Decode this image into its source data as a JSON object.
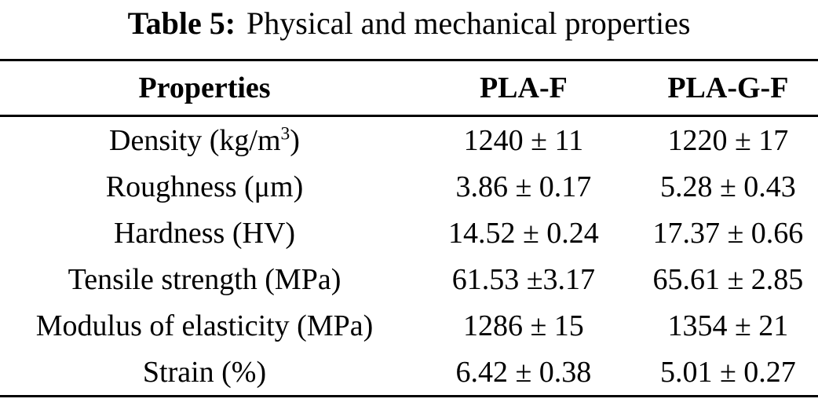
{
  "caption": {
    "label": "Table 5:",
    "text": "Physical and mechanical properties"
  },
  "table": {
    "columns": [
      "Properties",
      "PLA-F",
      "PLA-G-F"
    ],
    "rows": [
      {
        "property": "Density (kg/m",
        "property_sup": "3",
        "property_post": ")",
        "pla_f": "1240 ± 11",
        "pla_g_f": "1220 ± 17"
      },
      {
        "property": "Roughness (μm)",
        "pla_f": "3.86 ± 0.17",
        "pla_g_f": "5.28 ± 0.43"
      },
      {
        "property": "Hardness (HV)",
        "pla_f": "14.52 ± 0.24",
        "pla_g_f": "17.37 ± 0.66"
      },
      {
        "property": "Tensile strength (MPa)",
        "pla_f": "61.53 ±3.17",
        "pla_g_f": "65.61 ± 2.85"
      },
      {
        "property": "Modulus of elasticity (MPa)",
        "pla_f": "1286 ± 15",
        "pla_g_f": "1354 ± 21"
      },
      {
        "property": "Strain (%)",
        "pla_f": "6.42 ± 0.38",
        "pla_g_f": "5.01 ± 0.27"
      }
    ]
  },
  "colors": {
    "text": "#000000",
    "background": "#ffffff",
    "rule": "#000000"
  }
}
